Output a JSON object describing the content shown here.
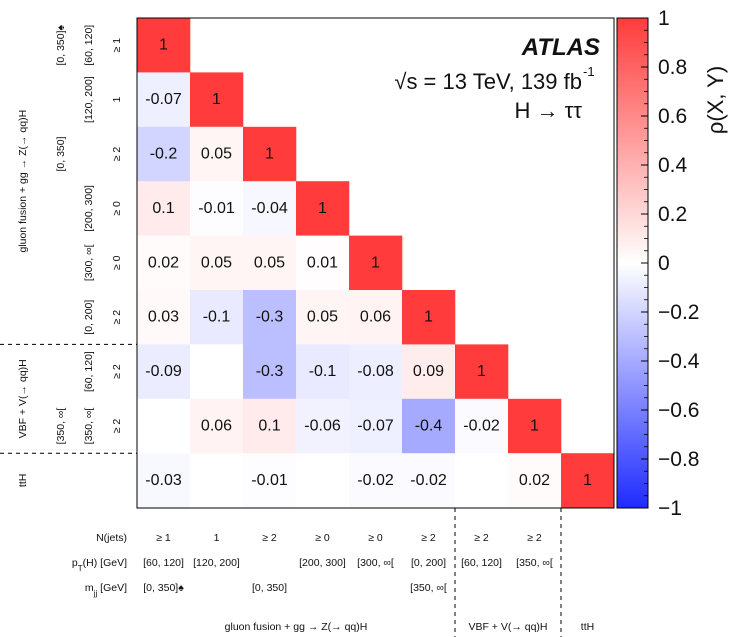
{
  "chart_data": {
    "type": "heatmap",
    "annotation": {
      "experiment": "ATLAS",
      "energy_line": "√s = 13 TeV, 139 fb",
      "lumi_sup": "-1",
      "process": "H → ττ"
    },
    "colorbar": {
      "label": "ρ(X, Y)",
      "range": [
        -1,
        1
      ],
      "ticks": [
        "1",
        "0.8",
        "0.6",
        "0.4",
        "0.2",
        "0",
        "−0.2",
        "−0.4",
        "−0.6",
        "−0.8",
        "−1"
      ],
      "tick_values": [
        1,
        0.8,
        0.6,
        0.4,
        0.2,
        0,
        -0.2,
        -0.4,
        -0.6,
        -0.8,
        -1
      ],
      "low_color": "#1f2bff",
      "mid_color": "#ffffff",
      "high_color": "#ff3b3b"
    },
    "bins": [
      {
        "njets": "≥ 1",
        "pt": "[60, 120]",
        "mjj": "[0, 350]",
        "mjj_mark": "♠"
      },
      {
        "njets": "1",
        "pt": "[120, 200]",
        "mjj": "",
        "mjj_mark": ""
      },
      {
        "njets": "≥ 2",
        "pt": "",
        "mjj": "[0, 350]",
        "mjj_mark": ""
      },
      {
        "njets": "≥ 0",
        "pt": "[200, 300]",
        "mjj": "",
        "mjj_mark": ""
      },
      {
        "njets": "≥ 0",
        "pt": "[300, ∞[",
        "mjj": "",
        "mjj_mark": ""
      },
      {
        "njets": "≥ 2",
        "pt": "[0, 200]",
        "mjj": "[350, ∞[",
        "mjj_mark": ""
      },
      {
        "njets": "≥ 2",
        "pt": "[60, 120]",
        "mjj": "",
        "mjj_mark": ""
      },
      {
        "njets": "≥ 2",
        "pt": "[350, ∞[",
        "mjj": "",
        "mjj_mark": ""
      },
      {
        "njets": "",
        "pt": "",
        "mjj": "",
        "mjj_mark": ""
      }
    ],
    "bottom_labels": {
      "njets_title": "N(jets)",
      "pt_title": "p",
      "pt_sub": "T",
      "pt_suffix": "(H) [GeV]",
      "mjj_title": "m",
      "mjj_sub": "jj",
      "mjj_suffix": " [GeV]",
      "mjj_texts": [
        "[0, 350]",
        "[0, 350]",
        "[350, ∞["
      ],
      "mjj_mark": "♠"
    },
    "groups": [
      {
        "name": "gluon fusion + gg → Z(→ qq)H",
        "bins": [
          0,
          5
        ]
      },
      {
        "name": "VBF + V(→ qq)H",
        "bins": [
          6,
          7
        ]
      },
      {
        "name": "ttH",
        "bins": [
          8,
          8
        ]
      }
    ],
    "left_groups": [
      {
        "name": "gluon fusion + gg → Z(→ qq)H",
        "bins": [
          0,
          5
        ]
      },
      {
        "name": "VBF + V(→ qq)H",
        "bins": [
          6,
          7
        ]
      },
      {
        "name": "ttH",
        "bins": [
          8,
          8
        ]
      }
    ],
    "left_mjj": [
      {
        "text": "[0, 350]",
        "mark": "♠",
        "row": 0
      },
      {
        "text": "[0, 350]",
        "mark": "",
        "row": 2
      },
      {
        "text": "[350, ∞[",
        "mark": "",
        "row": 7
      }
    ],
    "left_pt": [
      {
        "text": "[60, 120]",
        "row": 0
      },
      {
        "text": "[120, 200]",
        "row": 1
      },
      {
        "text": "[200, 300]",
        "row": 3
      },
      {
        "text": "[300, ∞[",
        "row": 4
      },
      {
        "text": "[0, 200]",
        "row": 5
      },
      {
        "text": "[60, 120]",
        "row": 6
      },
      {
        "text": "[350, ∞[",
        "row": 7
      }
    ],
    "matrix": [
      [
        "1"
      ],
      [
        "-0.07",
        "1"
      ],
      [
        "-0.2",
        "0.05",
        "1"
      ],
      [
        "0.1",
        "-0.01",
        "-0.04",
        "1"
      ],
      [
        "0.02",
        "0.05",
        "0.05",
        "0.01",
        "1"
      ],
      [
        "0.03",
        "-0.1",
        "-0.3",
        "0.05",
        "0.06",
        "1"
      ],
      [
        "-0.09",
        "",
        "-0.3",
        "-0.1",
        "-0.08",
        "0.09",
        "1"
      ],
      [
        "",
        "0.06",
        "0.1",
        "-0.06",
        "-0.07",
        "-0.4",
        "-0.02",
        "1"
      ],
      [
        "-0.03",
        "",
        "-0.01",
        "",
        "-0.02",
        "-0.02",
        "",
        "0.02",
        "1"
      ]
    ]
  }
}
